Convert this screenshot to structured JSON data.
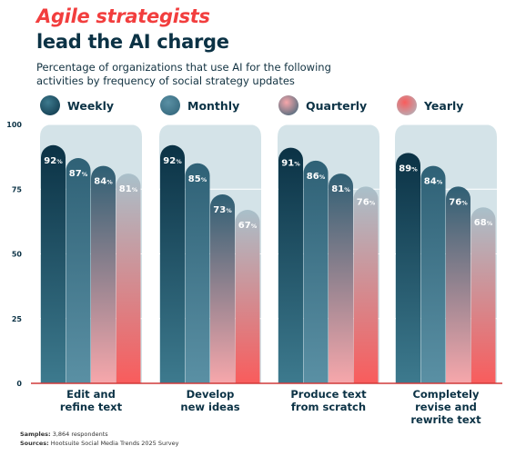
{
  "header": {
    "title_line1": "Agile strategists",
    "title_line2": "lead the AI charge",
    "subtitle": "Percentage of organizations that use AI for the following activities by frequency of social strategy updates"
  },
  "legend": [
    {
      "label": "Weekly",
      "color": "#0b3245"
    },
    {
      "label": "Monthly",
      "color": "#5a90a4"
    },
    {
      "label": "Quarterly",
      "color": "#e98a8e"
    },
    {
      "label": "Yearly",
      "color": "#f6686a"
    }
  ],
  "colors": {
    "panel": "#d4e3e8",
    "weekly": [
      "#0b3245",
      "#3d7a8e"
    ],
    "monthly": [
      "#2f6176",
      "#5a90a4"
    ],
    "quarterly": [
      "#2f5f74",
      "#f7a7ab"
    ],
    "yearly": [
      "#a9c0ca",
      "#f95c5c"
    ],
    "axis": "#d13a3a"
  },
  "chart_data": {
    "type": "bar",
    "categories": [
      [
        "Edit and",
        "refine text"
      ],
      [
        "Develop",
        "new ideas"
      ],
      [
        "Produce text",
        "from scratch"
      ],
      [
        "Completely",
        "revise and",
        "rewrite text"
      ]
    ],
    "series": [
      {
        "name": "Weekly",
        "values": [
          92,
          92,
          91,
          89
        ]
      },
      {
        "name": "Monthly",
        "values": [
          87,
          85,
          86,
          84
        ]
      },
      {
        "name": "Quarterly",
        "values": [
          84,
          73,
          81,
          76
        ]
      },
      {
        "name": "Yearly",
        "values": [
          81,
          67,
          76,
          68
        ]
      }
    ],
    "value_suffix": "%",
    "ylim": [
      0,
      100
    ],
    "yticks": [
      0,
      25,
      50,
      75,
      100
    ],
    "grid": true
  },
  "footnotes": {
    "samples_label": "Samples:",
    "samples_value": "3,864 respondents",
    "sources_label": "Sources:",
    "sources_value": "Hootsuite Social Media Trends 2025 Survey"
  }
}
